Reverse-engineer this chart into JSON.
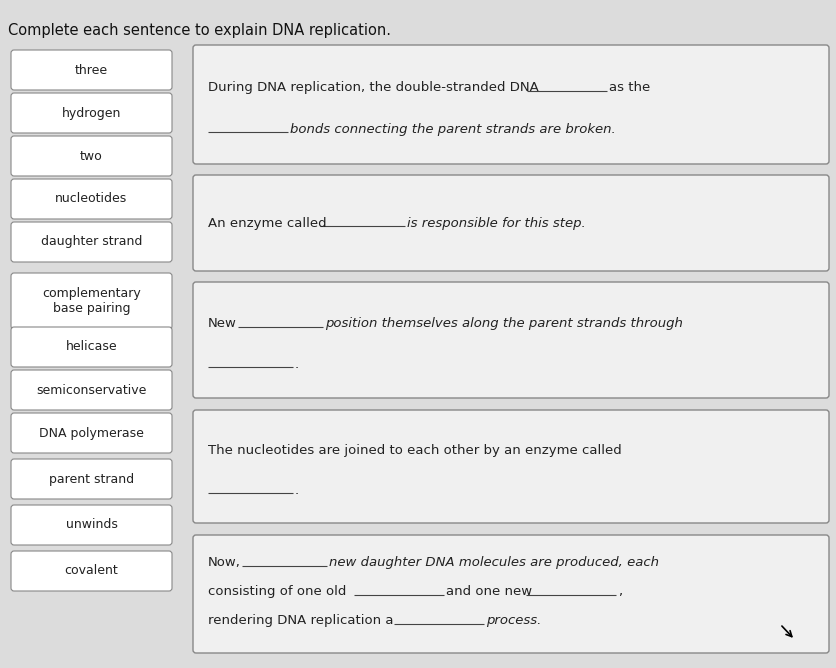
{
  "title": "Complete each sentence to explain DNA replication.",
  "bg_color": "#dcdcdc",
  "word_box_bg": "#ffffff",
  "word_box_border": "#888888",
  "sentence_box_bg": "#f0f0f0",
  "sentence_box_border": "#888888",
  "words": [
    "three",
    "hydrogen",
    "two",
    "nucleotides",
    "daughter strand",
    "complementary\nbase pairing",
    "helicase",
    "semiconservative",
    "DNA polymerase",
    "parent strand",
    "unwinds",
    "covalent"
  ],
  "figsize": [
    8.37,
    6.68
  ],
  "dpi": 100
}
